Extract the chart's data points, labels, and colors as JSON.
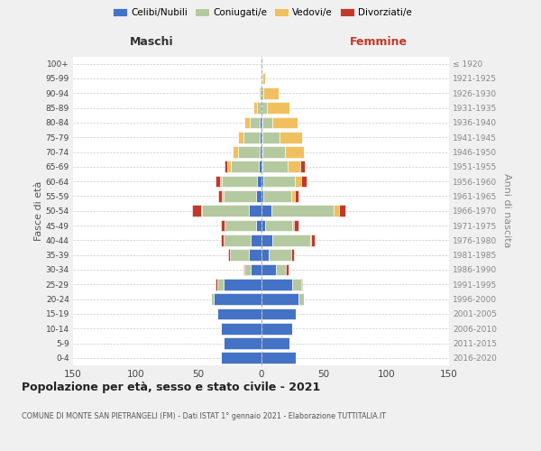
{
  "age_groups": [
    "0-4",
    "5-9",
    "10-14",
    "15-19",
    "20-24",
    "25-29",
    "30-34",
    "35-39",
    "40-44",
    "45-49",
    "50-54",
    "55-59",
    "60-64",
    "65-69",
    "70-74",
    "75-79",
    "80-84",
    "85-89",
    "90-94",
    "95-99",
    "100+"
  ],
  "birth_years": [
    "2016-2020",
    "2011-2015",
    "2006-2010",
    "2001-2005",
    "1996-2000",
    "1991-1995",
    "1986-1990",
    "1981-1985",
    "1976-1980",
    "1971-1975",
    "1966-1970",
    "1961-1965",
    "1956-1960",
    "1951-1955",
    "1946-1950",
    "1941-1945",
    "1936-1940",
    "1931-1935",
    "1926-1930",
    "1921-1925",
    "≤ 1920"
  ],
  "males": {
    "celibe": [
      32,
      30,
      32,
      35,
      38,
      30,
      8,
      10,
      8,
      4,
      10,
      4,
      3,
      2,
      1,
      1,
      1,
      0,
      0,
      0,
      0
    ],
    "coniugato": [
      0,
      0,
      0,
      0,
      2,
      5,
      5,
      15,
      22,
      25,
      37,
      26,
      28,
      22,
      17,
      13,
      8,
      3,
      1,
      0,
      0
    ],
    "vedovo": [
      0,
      0,
      0,
      0,
      0,
      0,
      0,
      0,
      0,
      0,
      1,
      1,
      2,
      3,
      5,
      4,
      4,
      3,
      1,
      0,
      0
    ],
    "divorziato": [
      0,
      0,
      0,
      0,
      0,
      1,
      1,
      1,
      2,
      3,
      7,
      3,
      3,
      2,
      0,
      0,
      0,
      0,
      0,
      0,
      0
    ]
  },
  "females": {
    "nubile": [
      28,
      23,
      25,
      28,
      30,
      25,
      12,
      6,
      9,
      3,
      8,
      2,
      2,
      1,
      1,
      1,
      1,
      0,
      0,
      0,
      0
    ],
    "coniugata": [
      0,
      0,
      0,
      0,
      4,
      7,
      8,
      18,
      30,
      22,
      50,
      22,
      25,
      20,
      18,
      14,
      8,
      5,
      2,
      1,
      0
    ],
    "vedova": [
      0,
      0,
      0,
      0,
      0,
      0,
      0,
      0,
      1,
      1,
      4,
      3,
      5,
      10,
      15,
      18,
      20,
      18,
      12,
      2,
      1
    ],
    "divorziata": [
      0,
      0,
      0,
      0,
      0,
      1,
      2,
      2,
      3,
      4,
      5,
      3,
      4,
      4,
      0,
      0,
      0,
      0,
      0,
      0,
      0
    ]
  },
  "colors": {
    "celibe": "#4472c4",
    "coniugato": "#b5c9a0",
    "vedovo": "#f0c060",
    "divorziato": "#c0392b"
  },
  "legend_labels": [
    "Celibi/Nubili",
    "Coniugati/e",
    "Vedovi/e",
    "Divorziati/e"
  ],
  "legend_colors": [
    "#4472c4",
    "#b5c9a0",
    "#f0c060",
    "#c0392b"
  ],
  "title": "Popolazione per età, sesso e stato civile - 2021",
  "subtitle": "COMUNE DI MONTE SAN PIETRANGELI (FM) - Dati ISTAT 1° gennaio 2021 - Elaborazione TUTTITALIA.IT",
  "header_left": "Maschi",
  "header_right": "Femmine",
  "ylabel_left": "Fasce di età",
  "ylabel_right": "Anni di nascita",
  "xlim": 150,
  "bg_color": "#f0f0f0",
  "plot_bg": "#ffffff"
}
